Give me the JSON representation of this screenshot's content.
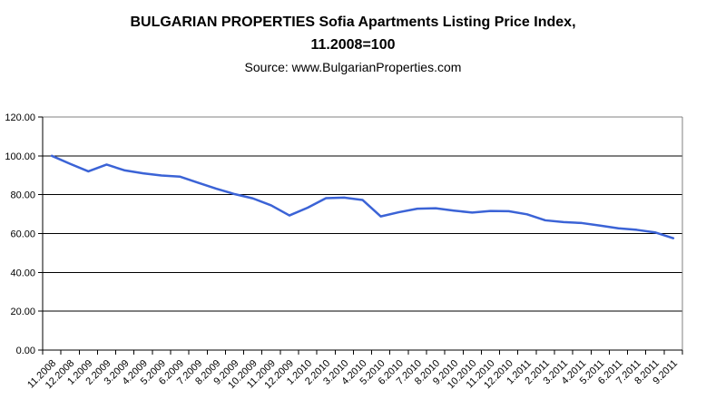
{
  "header": {
    "title_line1": "BULGARIAN PROPERTIES Sofia Apartments Listing Price Index,",
    "title_line2": "11.2008=100",
    "source": "Source: www.BulgarianProperties.com"
  },
  "chart_data": {
    "type": "line",
    "title": "BULGARIAN PROPERTIES Sofia Apartments Listing Price Index, 11.2008=100",
    "subtitle": "Source: www.BulgarianProperties.com",
    "categories": [
      "11.2008",
      "12.2008",
      "1.2009",
      "2.2009",
      "3.2009",
      "4.2009",
      "5.2009",
      "6.2009",
      "7.2009",
      "8.2009",
      "9.2009",
      "10.2009",
      "11.2009",
      "12.2009",
      "1.2010",
      "2.2010",
      "3.2010",
      "4.2010",
      "5.2010",
      "6.2010",
      "7.2010",
      "8.2010",
      "9.2010",
      "10.2010",
      "11.2010",
      "12.2010",
      "1.2011",
      "2.2011",
      "3.2011",
      "4.2011",
      "5.2011",
      "6.2011",
      "7.2011",
      "8.2011",
      "9.2011"
    ],
    "series": [
      {
        "name": "Sofia Apartments Listing Price Index",
        "values": [
          100.0,
          95.9,
          92.0,
          95.5,
          92.5,
          91.0,
          89.9,
          89.3,
          86.2,
          83.1,
          80.3,
          78.1,
          74.5,
          69.3,
          73.3,
          78.2,
          78.5,
          77.3,
          68.8,
          71.0,
          72.8,
          73.0,
          71.8,
          70.8,
          71.6,
          71.5,
          69.9,
          66.8,
          65.9,
          65.4,
          64.1,
          62.7,
          61.9,
          60.6,
          57.6
        ]
      }
    ],
    "ylim": [
      0,
      120
    ],
    "ytick_step": 20,
    "ytick_decimals": 2,
    "grid": "horizontal",
    "legend": "none",
    "colors": {
      "line": "#3B63D6",
      "gridline": "#000000",
      "plot_border": "#808080",
      "axis": "#000000",
      "label_text": "#000000",
      "background": "#FFFFFF"
    }
  }
}
